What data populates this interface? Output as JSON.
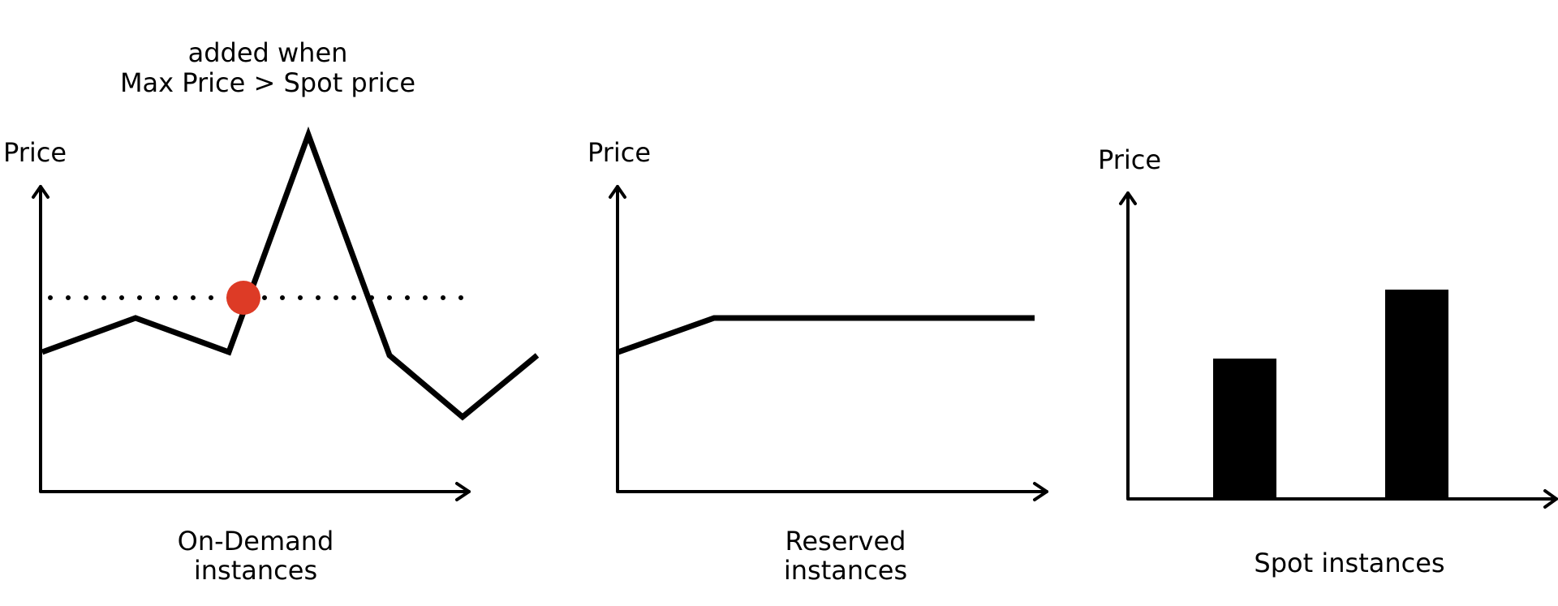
{
  "annotation": {
    "line1": "added when",
    "line2": "Max Price > Spot price"
  },
  "panels": [
    {
      "axis_label": "Price",
      "caption_lines": [
        "On-Demand",
        "instances"
      ]
    },
    {
      "axis_label": "Price",
      "caption_lines": [
        "Reserved",
        "instances"
      ]
    },
    {
      "axis_label": "Price",
      "caption_lines": [
        "Spot instances"
      ]
    }
  ],
  "colors": {
    "ink": "#000000",
    "marker": "#dd3b26",
    "background": "#ffffff"
  }
}
